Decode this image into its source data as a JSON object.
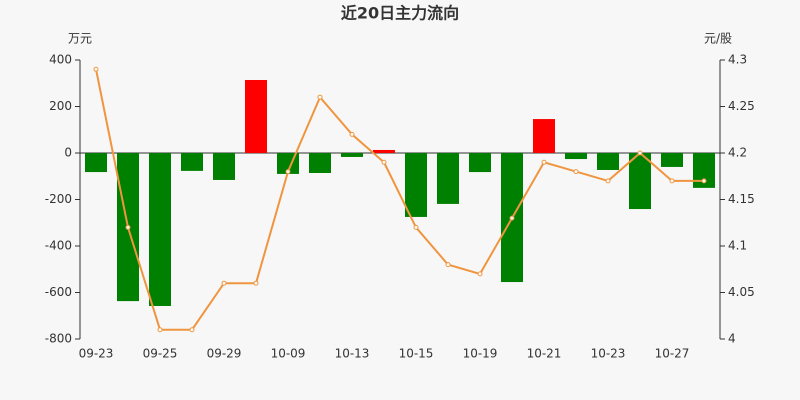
{
  "chart_data": {
    "type": "bar_line",
    "title": "近20日主力流向",
    "y_label": "万元",
    "y2_label": "元/股",
    "categories": [
      "09-23",
      null,
      "09-25",
      null,
      "09-29",
      null,
      "10-09",
      null,
      "10-13",
      null,
      "10-15",
      null,
      "10-19",
      null,
      "10-21",
      null,
      "10-23",
      null,
      "10-27",
      null
    ],
    "series": [
      {
        "type": "bar",
        "positive_color": "#ff0000",
        "negative_color": "#008000",
        "values": [
          -82,
          -637,
          -658,
          -77,
          -116,
          314,
          -90,
          -86,
          -17,
          13,
          -275,
          -219,
          -82,
          -555,
          146,
          -26,
          -73,
          -241,
          -60,
          -150
        ]
      },
      {
        "type": "line",
        "axis": "y2",
        "color": "#f0953f",
        "values": [
          4.29,
          4.12,
          4.01,
          4.01,
          4.06,
          4.06,
          4.18,
          4.26,
          4.22,
          4.19,
          4.12,
          4.08,
          4.07,
          4.13,
          4.19,
          4.18,
          4.17,
          4.2,
          4.17,
          4.17
        ]
      }
    ],
    "ylim": [
      -800,
      400
    ],
    "yticks": [
      -800,
      -600,
      -400,
      -200,
      0,
      200,
      400
    ],
    "y2lim": [
      4,
      4.3
    ],
    "y2ticks": [
      4,
      4.05,
      4.1,
      4.15,
      4.2,
      4.25,
      4.3
    ]
  }
}
